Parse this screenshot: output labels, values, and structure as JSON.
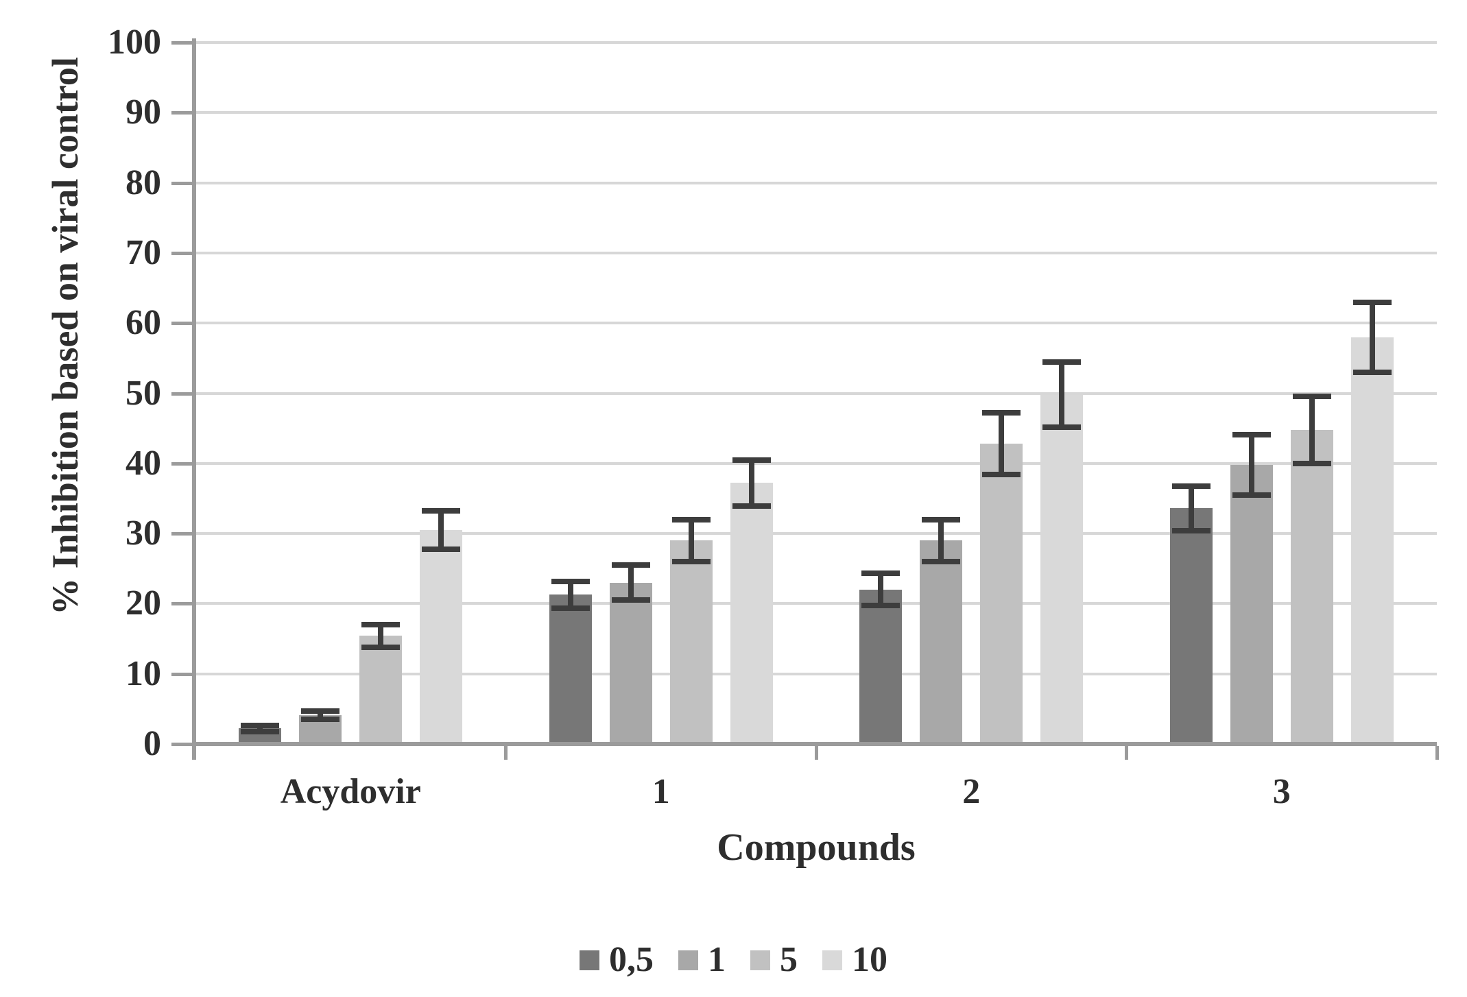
{
  "chart_data": {
    "type": "bar",
    "title": "",
    "xlabel": "Compounds",
    "ylabel": "% Inhibition based on viral control",
    "ylim": [
      0,
      100
    ],
    "ytick_step": 10,
    "yticks": [
      0,
      10,
      20,
      30,
      40,
      50,
      60,
      70,
      80,
      90,
      100
    ],
    "grid": true,
    "legend_position": "bottom",
    "categories": [
      "Acydovir",
      "1",
      "2",
      "3"
    ],
    "series": [
      {
        "name": "0,5",
        "color": "#777777",
        "values": [
          2.2,
          21.3,
          22.0,
          33.6
        ],
        "errors": [
          0.4,
          1.9,
          2.3,
          3.2
        ]
      },
      {
        "name": "1",
        "color": "#a8a8a8",
        "values": [
          4.1,
          23.0,
          29.0,
          39.8
        ],
        "errors": [
          0.6,
          2.5,
          3.0,
          4.3
        ]
      },
      {
        "name": "5",
        "color": "#c1c1c1",
        "values": [
          15.4,
          29.0,
          42.8,
          44.8
        ],
        "errors": [
          1.6,
          3.0,
          4.4,
          4.8
        ]
      },
      {
        "name": "10",
        "color": "#d9d9d9",
        "values": [
          30.5,
          37.2,
          49.8,
          58.0
        ],
        "errors": [
          2.7,
          3.3,
          4.6,
          5.0
        ]
      }
    ],
    "error_bar_color": "#3d3d3d",
    "axis_color": "#9b9b9b",
    "grid_color": "#d7d7d7",
    "text_color": "#2e2e2e"
  }
}
